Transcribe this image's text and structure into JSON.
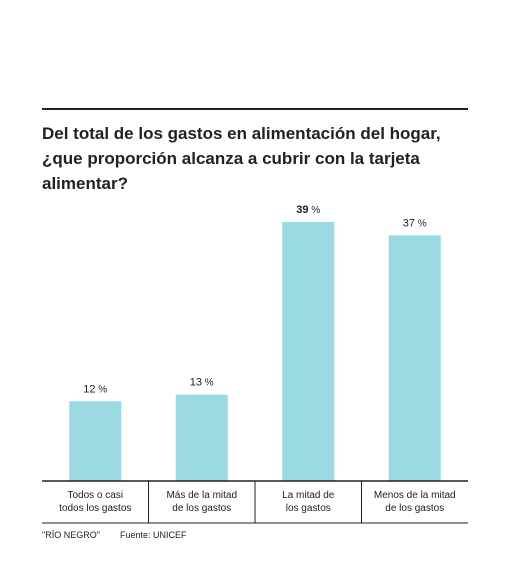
{
  "chart_data": {
    "type": "bar",
    "title": "Del total de los gastos en alimentación del hogar, ¿que proporción alcanza a cubrir con la tarjeta alimentar?",
    "categories": [
      [
        "Todos o casi",
        "todos los gastos"
      ],
      [
        "Más de la mitad",
        "de los gastos"
      ],
      [
        "La mitad de",
        "los gastos"
      ],
      [
        "Menos de la mitad",
        "de los gastos"
      ]
    ],
    "values": [
      12,
      13,
      39,
      37
    ],
    "value_labels": [
      "12",
      "13",
      "39",
      "37"
    ],
    "value_unit": "%",
    "highlighted_index": 2,
    "ylim": [
      0,
      39
    ],
    "grid": false,
    "legend": "none",
    "bar_color": "#9ad8e2",
    "text_color": "#222222"
  },
  "footer": {
    "credit": "\"RÍO NEGRO\"",
    "source": "Fuente: UNICEF"
  }
}
